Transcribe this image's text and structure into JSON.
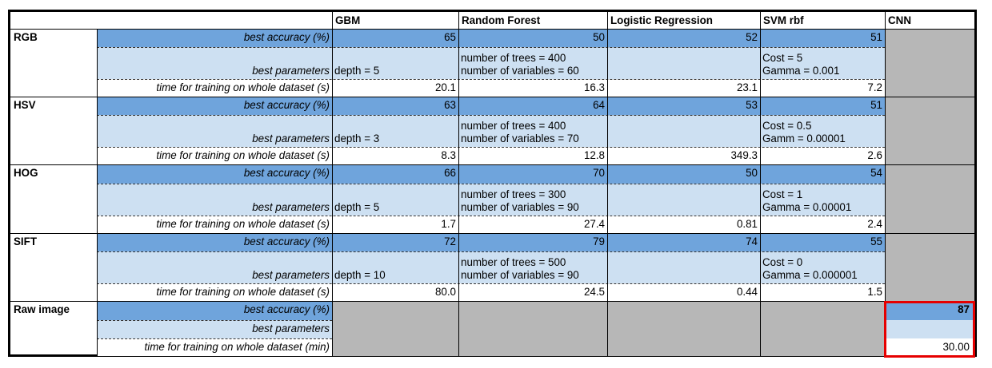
{
  "header": {
    "models": [
      "GBM",
      "Random Forest",
      "Logistic Regression",
      "SVM rbf",
      "CNN"
    ]
  },
  "row_labels": {
    "accuracy": "best accuracy (%)",
    "params": "best parameters",
    "time_s": "time for training on whole dataset (s)",
    "time_min": "time for training on whole dataset (min)"
  },
  "features": [
    {
      "name": "RGB",
      "accuracy": [
        "65",
        "50",
        "52",
        "51"
      ],
      "params": [
        [
          "depth = 5"
        ],
        [
          "number of trees = 400",
          "number of variables = 60"
        ],
        [],
        [
          "Cost = 5",
          "Gamma = 0.001"
        ]
      ],
      "time": [
        "20.1",
        "16.3",
        "23.1",
        "7.2"
      ]
    },
    {
      "name": "HSV",
      "accuracy": [
        "63",
        "64",
        "53",
        "51"
      ],
      "params": [
        [
          "depth = 3"
        ],
        [
          "number of trees = 400",
          "number of variables = 70"
        ],
        [],
        [
          "Cost = 0.5",
          "Gamm = 0.00001"
        ]
      ],
      "time": [
        "8.3",
        "12.8",
        "349.3",
        "2.6"
      ]
    },
    {
      "name": "HOG",
      "accuracy": [
        "66",
        "70",
        "50",
        "54"
      ],
      "params": [
        [
          "depth = 5"
        ],
        [
          "number of trees = 300",
          "number of variables = 90"
        ],
        [],
        [
          "Cost = 1",
          "Gamma = 0.00001"
        ]
      ],
      "time": [
        "1.7",
        "27.4",
        "0.81",
        "2.4"
      ]
    },
    {
      "name": "SIFT",
      "accuracy": [
        "72",
        "79",
        "74",
        "55"
      ],
      "params": [
        [
          "depth = 10"
        ],
        [
          "number of trees = 500",
          "number of variables = 90"
        ],
        [],
        [
          "Cost = 0",
          "Gamma = 0.000001"
        ]
      ],
      "time": [
        "80.0",
        "24.5",
        "0.44",
        "1.5"
      ]
    }
  ],
  "raw": {
    "name": "Raw image",
    "cnn_accuracy": "87",
    "cnn_params": "",
    "cnn_time": "30.00"
  },
  "colors": {
    "accuracy_row": "#6fa4dc",
    "params_row": "#cde0f2",
    "empty_cell": "#b7b7b7",
    "highlight_border": "#e60000"
  }
}
